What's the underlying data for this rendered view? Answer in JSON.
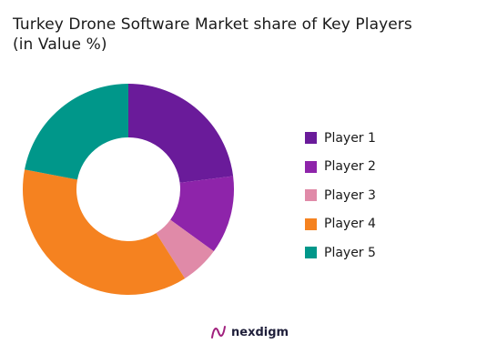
{
  "title": {
    "line1": "Turkey Drone Software Market share of Key Players",
    "line2": "(in Value %)"
  },
  "chart_data": {
    "type": "pie",
    "variant": "donut",
    "title": "Turkey Drone Software Market share of Key Players (in Value %)",
    "legend_position": "right",
    "series": [
      {
        "name": "Player 1",
        "value": 23,
        "color": "#6a1b9a"
      },
      {
        "name": "Player 2",
        "value": 12,
        "color": "#8e24aa"
      },
      {
        "name": "Player 3",
        "value": 6,
        "color": "#e08aa8"
      },
      {
        "name": "Player 4",
        "value": 37,
        "color": "#f58220"
      },
      {
        "name": "Player 5",
        "value": 22,
        "color": "#00978a"
      }
    ]
  },
  "logo": {
    "text": "nexdigm",
    "icon": "nexdigm-logo-icon",
    "icon_color": "#a0207d"
  }
}
